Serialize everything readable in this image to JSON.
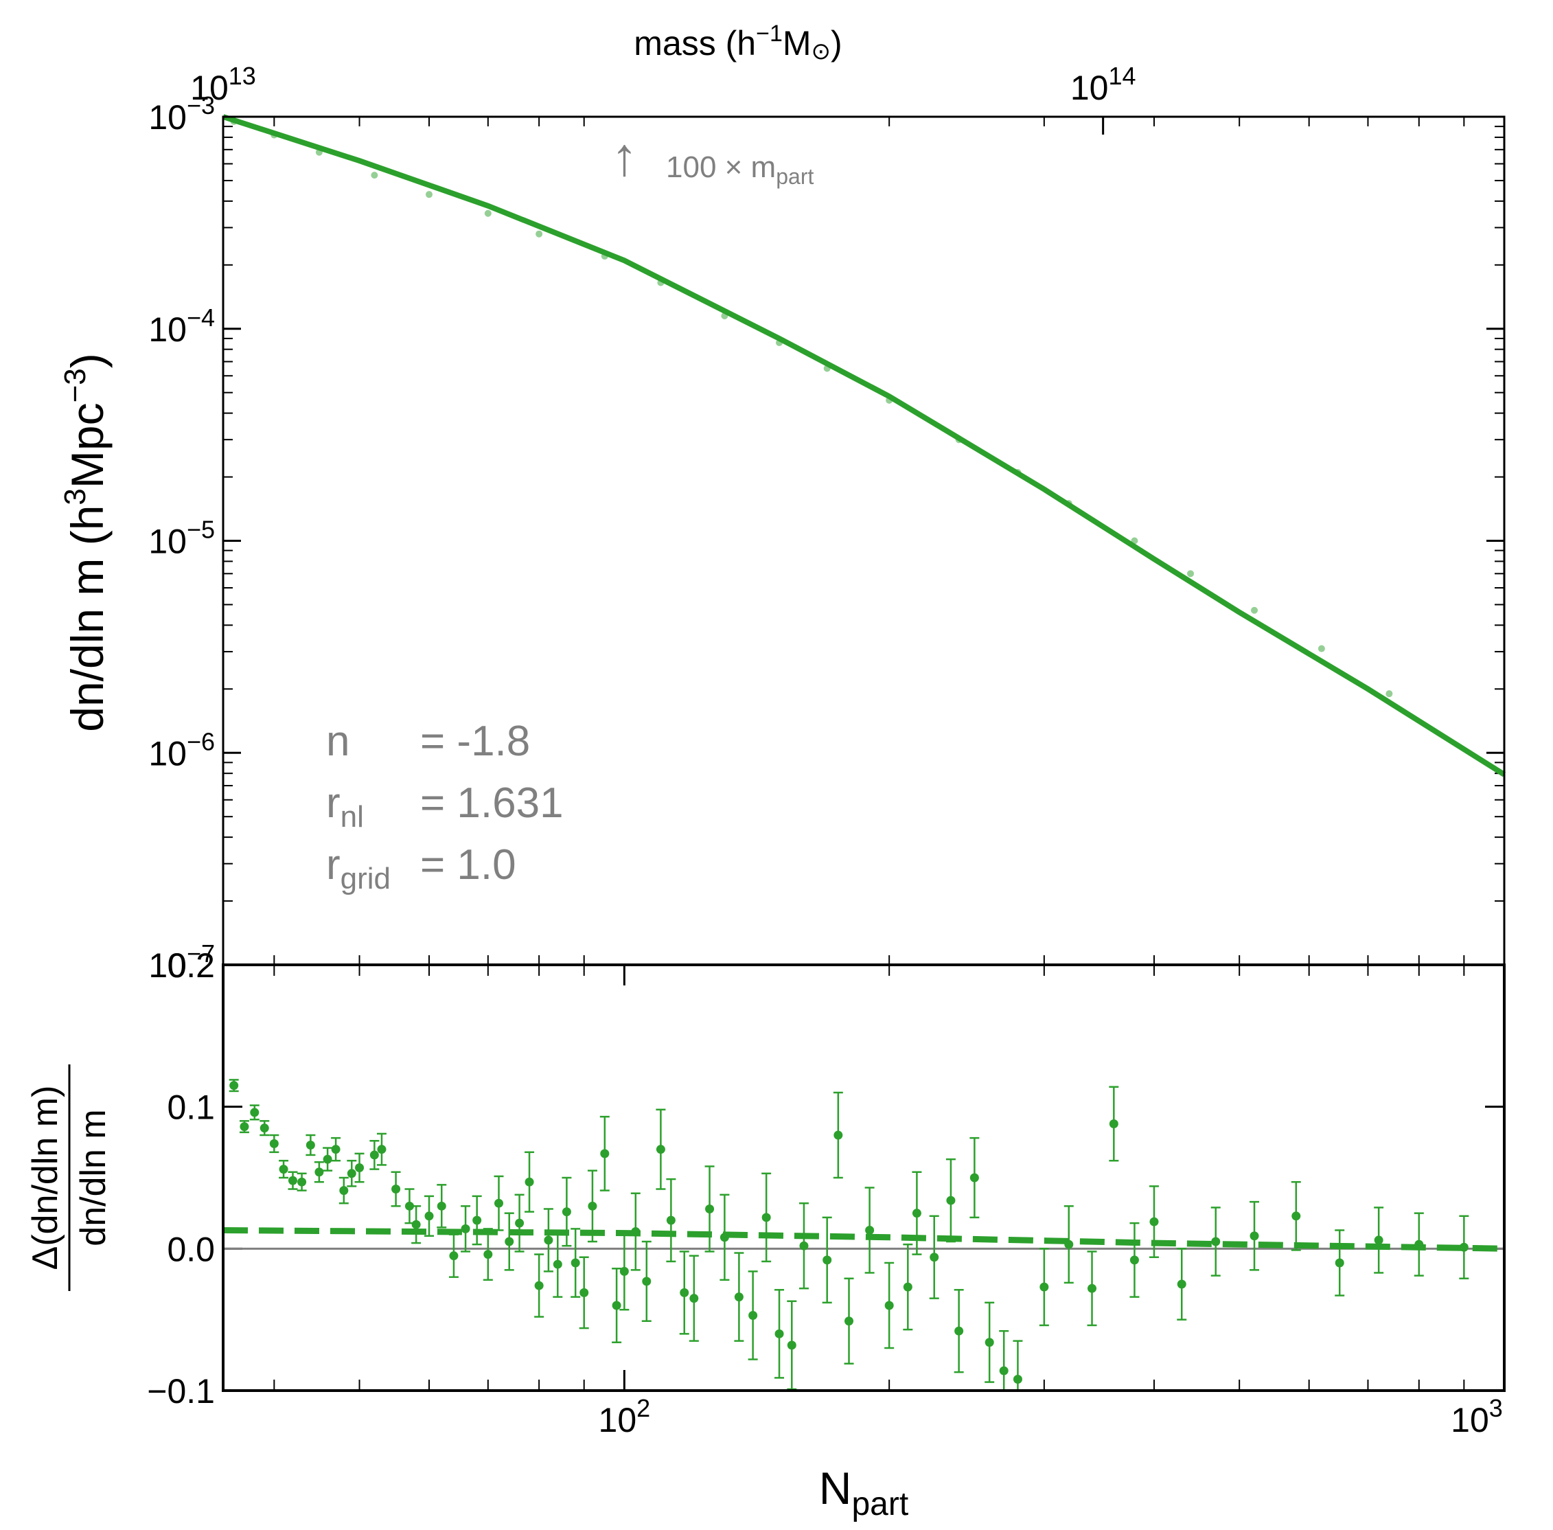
{
  "colors": {
    "series": "#2ca02c",
    "annotation": "#808080",
    "axes": "#000000",
    "zero_line": "#808080"
  },
  "top_axis": {
    "label_main": "mass (h",
    "label_exp": "−1",
    "label_unit": "M",
    "label_sun": "⊙",
    "label_close": ")",
    "ticks": [
      {
        "base": "10",
        "exp": "13",
        "npart": 35
      },
      {
        "base": "10",
        "exp": "14",
        "npart": 350
      }
    ]
  },
  "annotation": {
    "arrow": "↑",
    "text": "100 × m",
    "sub": "part",
    "npart": 100
  },
  "params": {
    "n_label": "n",
    "n_value": "= -1.8",
    "rnl_label": "r",
    "rnl_sub": "nl",
    "rnl_value": "= 1.631",
    "rgrid_label": "r",
    "rgrid_sub": "grid",
    "rgrid_value": "= 1.0"
  },
  "chart_data": [
    {
      "type": "line",
      "panel": "top",
      "ylabel_main": "dn/dln m (h",
      "ylabel_exp1": "3",
      "ylabel_mid": "Mpc",
      "ylabel_exp2": "−3",
      "ylabel_close": ")",
      "xscale": "log",
      "yscale": "log",
      "xlim": [
        35,
        1000
      ],
      "ylim": [
        1e-07,
        0.001
      ],
      "yticks": [
        {
          "base": "10",
          "exp": "−3",
          "value": 0.001
        },
        {
          "base": "10",
          "exp": "−4",
          "value": 0.0001
        },
        {
          "base": "10",
          "exp": "−5",
          "value": 1e-05
        },
        {
          "base": "10",
          "exp": "−6",
          "value": 1e-06
        },
        {
          "base": "10",
          "exp": "−7",
          "value": 1e-07
        }
      ],
      "series": [
        {
          "name": "theory",
          "style": "solid",
          "x": [
            35,
            50,
            70,
            100,
            150,
            200,
            300,
            400,
            500,
            700,
            1000
          ],
          "y": [
            0.001,
            0.00062,
            0.00038,
            0.00021,
            9e-05,
            4.8e-05,
            1.75e-05,
            8.2e-06,
            4.6e-06,
            2e-06,
            7.9e-07
          ]
        },
        {
          "name": "simulation",
          "style": "markers-with-errorbars",
          "x": [
            36,
            40,
            45,
            52,
            60,
            70,
            80,
            95,
            110,
            130,
            150,
            170,
            200,
            240,
            280,
            320,
            380,
            440,
            520,
            620,
            740
          ],
          "y": [
            0.00095,
            0.00082,
            0.00068,
            0.00053,
            0.00043,
            0.00035,
            0.00028,
            0.00022,
            0.000165,
            0.000115,
            8.6e-05,
            6.5e-05,
            4.6e-05,
            3e-05,
            2.1e-05,
            1.5e-05,
            1e-05,
            7e-06,
            4.7e-06,
            3.1e-06,
            1.9e-06
          ]
        }
      ]
    },
    {
      "type": "scatter",
      "panel": "bottom",
      "ylabel_num": "Δ(dn/dln m)",
      "ylabel_den": "dn/dln m",
      "xlabel_main": "N",
      "xlabel_sub": "part",
      "xscale": "log",
      "yscale": "linear",
      "xlim": [
        35,
        1000
      ],
      "ylim": [
        -0.1,
        0.2
      ],
      "xticks": [
        {
          "base": "10",
          "exp": "2",
          "value": 100
        },
        {
          "base": "10",
          "exp": "3",
          "value": 1000
        }
      ],
      "yticks": [
        {
          "label": "0.2",
          "value": 0.2
        },
        {
          "label": "0.1",
          "value": 0.1
        },
        {
          "label": "0.0",
          "value": 0.0
        },
        {
          "label": "−0.1",
          "value": -0.1
        }
      ],
      "zero_line": 0.0,
      "dashed_fit": {
        "x": [
          35,
          100,
          200,
          400,
          1000
        ],
        "y": [
          0.013,
          0.011,
          0.008,
          0.004,
          0.0
        ]
      },
      "points": {
        "x": [
          36,
          37,
          38,
          39,
          40,
          41,
          42,
          43,
          44,
          45,
          46,
          47,
          48,
          49,
          50,
          52,
          53,
          55,
          57,
          58,
          60,
          62,
          64,
          66,
          68,
          70,
          72,
          74,
          76,
          78,
          80,
          82,
          84,
          86,
          88,
          90,
          92,
          95,
          98,
          100,
          103,
          106,
          110,
          113,
          117,
          120,
          125,
          130,
          135,
          140,
          145,
          150,
          155,
          160,
          170,
          175,
          180,
          190,
          200,
          210,
          215,
          225,
          235,
          240,
          250,
          260,
          270,
          280,
          300,
          320,
          340,
          360,
          380,
          400,
          430,
          470,
          520,
          580,
          650,
          720,
          800,
          900
        ],
        "y": [
          0.115,
          0.086,
          0.096,
          0.085,
          0.074,
          0.056,
          0.048,
          0.047,
          0.073,
          0.054,
          0.063,
          0.07,
          0.041,
          0.053,
          0.057,
          0.066,
          0.07,
          0.042,
          0.03,
          0.017,
          0.023,
          0.03,
          -0.005,
          0.014,
          0.02,
          -0.004,
          0.032,
          0.005,
          0.018,
          0.047,
          -0.026,
          0.006,
          -0.011,
          0.026,
          -0.01,
          -0.031,
          0.03,
          0.067,
          -0.04,
          -0.016,
          0.012,
          -0.023,
          0.07,
          0.02,
          -0.031,
          -0.035,
          0.028,
          0.008,
          -0.034,
          -0.047,
          0.022,
          -0.06,
          -0.068,
          0.002,
          -0.008,
          0.08,
          -0.051,
          0.013,
          -0.04,
          -0.027,
          0.025,
          -0.006,
          0.034,
          -0.058,
          0.05,
          -0.066,
          -0.086,
          -0.092,
          -0.027,
          0.003,
          -0.028,
          0.088,
          -0.008,
          0.019,
          -0.025,
          0.005,
          0.009,
          0.023,
          -0.01,
          0.006,
          0.003,
          0.001
        ],
        "err": [
          0.004,
          0.004,
          0.005,
          0.005,
          0.006,
          0.006,
          0.006,
          0.006,
          0.007,
          0.007,
          0.008,
          0.008,
          0.009,
          0.009,
          0.01,
          0.01,
          0.011,
          0.012,
          0.012,
          0.013,
          0.014,
          0.015,
          0.015,
          0.016,
          0.017,
          0.018,
          0.019,
          0.02,
          0.02,
          0.021,
          0.022,
          0.022,
          0.023,
          0.024,
          0.024,
          0.025,
          0.025,
          0.026,
          0.026,
          0.027,
          0.027,
          0.028,
          0.028,
          0.029,
          0.029,
          0.03,
          0.03,
          0.03,
          0.031,
          0.031,
          0.031,
          0.031,
          0.031,
          0.03,
          0.03,
          0.03,
          0.03,
          0.03,
          0.03,
          0.03,
          0.029,
          0.029,
          0.029,
          0.029,
          0.028,
          0.028,
          0.028,
          0.027,
          0.027,
          0.027,
          0.026,
          0.026,
          0.026,
          0.025,
          0.025,
          0.024,
          0.024,
          0.024,
          0.023,
          0.023,
          0.022,
          0.022
        ]
      }
    }
  ]
}
